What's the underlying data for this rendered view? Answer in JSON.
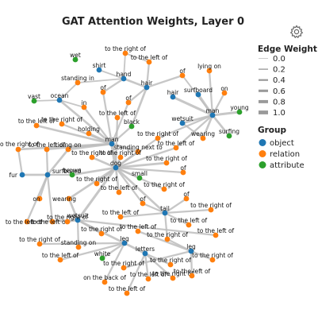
{
  "chart_data": {
    "type": "network",
    "title": "GAT Attention Weights, Layer 0",
    "legend_edge_title": "Edge Weight",
    "legend_edge_levels": [
      "0.0",
      "0.2",
      "0.4",
      "0.6",
      "0.8",
      "1.0"
    ],
    "legend_group_title": "Group",
    "legend_position": "right",
    "groups": [
      {
        "name": "object",
        "color": "#1f77b4"
      },
      {
        "name": "relation",
        "color": "#ff7f0e"
      },
      {
        "name": "attribute",
        "color": "#2ca02c"
      }
    ],
    "nodes": [
      {
        "id": "wet",
        "label": "wet",
        "group": "attribute"
      },
      {
        "id": "shirt",
        "label": "shirt",
        "group": "object"
      },
      {
        "id": "tro1",
        "label": "to the right of",
        "group": "relation"
      },
      {
        "id": "tlo1",
        "label": "to the left of",
        "group": "relation"
      },
      {
        "id": "hand",
        "label": "hand",
        "group": "object"
      },
      {
        "id": "hair1",
        "label": "hair",
        "group": "object"
      },
      {
        "id": "standing_in",
        "label": "standing in",
        "group": "relation"
      },
      {
        "id": "of1",
        "label": "of",
        "group": "relation"
      },
      {
        "id": "lying_on",
        "label": "lying on",
        "group": "relation"
      },
      {
        "id": "of2",
        "label": "of",
        "group": "relation"
      },
      {
        "id": "on1",
        "label": "on",
        "group": "relation"
      },
      {
        "id": "hair2",
        "label": "hair",
        "group": "object"
      },
      {
        "id": "surfboard1",
        "label": "surfboard",
        "group": "object"
      },
      {
        "id": "vast",
        "label": "vast",
        "group": "attribute"
      },
      {
        "id": "ocean",
        "label": "ocean",
        "group": "object"
      },
      {
        "id": "of3",
        "label": "of",
        "group": "relation"
      },
      {
        "id": "man1",
        "label": "man",
        "group": "object"
      },
      {
        "id": "young",
        "label": "young",
        "group": "attribute"
      },
      {
        "id": "in1",
        "label": "in",
        "group": "relation"
      },
      {
        "id": "tlo2",
        "label": "to the left of",
        "group": "relation"
      },
      {
        "id": "black",
        "label": "black",
        "group": "attribute"
      },
      {
        "id": "wetsuit1",
        "label": "wetsuit",
        "group": "object"
      },
      {
        "id": "tlo3",
        "label": "to the left of",
        "group": "relation"
      },
      {
        "id": "tro2",
        "label": "to the right of",
        "group": "relation"
      },
      {
        "id": "holding",
        "label": "holding",
        "group": "relation"
      },
      {
        "id": "surfing",
        "label": "surfing",
        "group": "attribute"
      },
      {
        "id": "wearing1",
        "label": "wearing",
        "group": "relation"
      },
      {
        "id": "tro3",
        "label": "to the right of",
        "group": "relation"
      },
      {
        "id": "tlo4",
        "label": "to the left of",
        "group": "relation"
      },
      {
        "id": "man2",
        "label": "man",
        "group": "object"
      },
      {
        "id": "tro4",
        "label": "to the right of",
        "group": "relation"
      },
      {
        "id": "tlo5",
        "label": "to the left of",
        "group": "relation"
      },
      {
        "id": "riding_on",
        "label": "riding on",
        "group": "relation"
      },
      {
        "id": "standing_next",
        "label": "standing next to",
        "group": "relation"
      },
      {
        "id": "tro5",
        "label": "to the right of",
        "group": "relation"
      },
      {
        "id": "tro6",
        "label": "to the right of",
        "group": "relation"
      },
      {
        "id": "tro7",
        "label": "to the right of",
        "group": "relation"
      },
      {
        "id": "dog",
        "label": "dog",
        "group": "object"
      },
      {
        "id": "of4",
        "label": "of",
        "group": "relation"
      },
      {
        "id": "fur",
        "label": "fur",
        "group": "object"
      },
      {
        "id": "surfboard2",
        "label": "surfboard",
        "group": "object"
      },
      {
        "id": "brown",
        "label": "brown",
        "group": "attribute"
      },
      {
        "id": "small",
        "label": "small",
        "group": "attribute"
      },
      {
        "id": "tro8",
        "label": "to the right of",
        "group": "relation"
      },
      {
        "id": "tlo6",
        "label": "to the left of",
        "group": "relation"
      },
      {
        "id": "tro9",
        "label": "to the right of",
        "group": "relation"
      },
      {
        "id": "on2",
        "label": "on",
        "group": "relation"
      },
      {
        "id": "wearing2",
        "label": "wearing",
        "group": "relation"
      },
      {
        "id": "of5",
        "label": "of",
        "group": "relation"
      },
      {
        "id": "of6",
        "label": "of",
        "group": "relation"
      },
      {
        "id": "tail",
        "label": "tail",
        "group": "object"
      },
      {
        "id": "tro10",
        "label": "to the right of",
        "group": "relation"
      },
      {
        "id": "tlo7",
        "label": "to the left of",
        "group": "relation"
      },
      {
        "id": "tlo8",
        "label": "to the left of",
        "group": "relation"
      },
      {
        "id": "wetsuit2",
        "label": "wetsuit",
        "group": "object"
      },
      {
        "id": "tlo9",
        "label": "to the left of",
        "group": "relation"
      },
      {
        "id": "tlo10",
        "label": "to the left of",
        "group": "relation"
      },
      {
        "id": "tlo11",
        "label": "to the left of",
        "group": "relation"
      },
      {
        "id": "tro11",
        "label": "to the right of",
        "group": "relation"
      },
      {
        "id": "tro12",
        "label": "to the right of",
        "group": "relation"
      },
      {
        "id": "tro13",
        "label": "to the right of",
        "group": "relation"
      },
      {
        "id": "standing_on",
        "label": "standing on",
        "group": "relation"
      },
      {
        "id": "leg1",
        "label": "leg",
        "group": "object"
      },
      {
        "id": "leg2",
        "label": "leg",
        "group": "object"
      },
      {
        "id": "tlo12",
        "label": "to the left of",
        "group": "relation"
      },
      {
        "id": "letters",
        "label": "letters",
        "group": "object"
      },
      {
        "id": "white",
        "label": "white",
        "group": "attribute"
      },
      {
        "id": "tro14",
        "label": "to the right of",
        "group": "relation"
      },
      {
        "id": "tro15",
        "label": "to the right of",
        "group": "relation"
      },
      {
        "id": "tlo13",
        "label": "to the left of",
        "group": "relation"
      },
      {
        "id": "tro16",
        "label": "to the right of",
        "group": "relation"
      },
      {
        "id": "tro17",
        "label": "to the right of",
        "group": "relation"
      },
      {
        "id": "tro18",
        "label": "to the right of",
        "group": "relation"
      },
      {
        "id": "tlo14",
        "label": "to the left of",
        "group": "relation"
      },
      {
        "id": "on_back",
        "label": "on the back of",
        "group": "relation"
      },
      {
        "id": "tlo15",
        "label": "to the left of",
        "group": "relation"
      },
      {
        "id": "tlo16",
        "label": "to the left of",
        "group": "relation"
      }
    ],
    "edges": [
      {
        "source": "shirt",
        "target": "hand",
        "weight": 0.3
      },
      {
        "source": "hand",
        "target": "standing_in",
        "weight": 0.3
      },
      {
        "source": "hand",
        "target": "hair1",
        "weight": 0.5
      },
      {
        "source": "hand",
        "target": "of1",
        "weight": 0.4
      },
      {
        "source": "hand",
        "target": "tro1",
        "weight": 0.3
      },
      {
        "source": "tro1",
        "target": "tlo1",
        "weight": 0.3
      },
      {
        "source": "tlo1",
        "target": "hair1",
        "weight": 0.4
      },
      {
        "source": "hair1",
        "target": "of2",
        "weight": 0.4
      },
      {
        "source": "hair1",
        "target": "black",
        "weight": 0.5
      },
      {
        "source": "hair1",
        "target": "of3",
        "weight": 0.4
      },
      {
        "source": "of1",
        "target": "man2",
        "weight": 0.4
      },
      {
        "source": "of3",
        "target": "man2",
        "weight": 0.4
      },
      {
        "source": "lying_on",
        "target": "man1",
        "weight": 0.4
      },
      {
        "source": "of2",
        "target": "man1",
        "weight": 0.3
      },
      {
        "source": "on1",
        "target": "man1",
        "weight": 0.4
      },
      {
        "source": "hair2",
        "target": "man1",
        "weight": 0.6
      },
      {
        "source": "surfboard1",
        "target": "man1",
        "weight": 0.6
      },
      {
        "source": "man1",
        "target": "young",
        "weight": 0.6
      },
      {
        "source": "man1",
        "target": "wetsuit1",
        "weight": 0.5
      },
      {
        "source": "man1",
        "target": "wearing1",
        "weight": 0.5
      },
      {
        "source": "wearing1",
        "target": "wetsuit1",
        "weight": 0.4
      },
      {
        "source": "man1",
        "target": "surfing",
        "weight": 0.5
      },
      {
        "source": "man1",
        "target": "tro3",
        "weight": 0.4
      },
      {
        "source": "man1",
        "target": "tlo4",
        "weight": 0.4
      },
      {
        "source": "tro3",
        "target": "dog",
        "weight": 0.4
      },
      {
        "source": "tlo4",
        "target": "dog",
        "weight": 0.4
      },
      {
        "source": "ocean",
        "target": "standing_in",
        "weight": 0.3
      },
      {
        "source": "ocean",
        "target": "vast",
        "weight": 0.3
      },
      {
        "source": "ocean",
        "target": "in1",
        "weight": 0.3
      },
      {
        "source": "ocean",
        "target": "man2",
        "weight": 0.5
      },
      {
        "source": "in1",
        "target": "man2",
        "weight": 0.4
      },
      {
        "source": "tlo2",
        "target": "man2",
        "weight": 0.5
      },
      {
        "source": "holding",
        "target": "man2",
        "weight": 0.5
      },
      {
        "source": "black",
        "target": "man2",
        "weight": 0.4
      },
      {
        "source": "tro2",
        "target": "man2",
        "weight": 0.4
      },
      {
        "source": "man2",
        "target": "tro4",
        "weight": 0.5
      },
      {
        "source": "man2",
        "target": "tlo5",
        "weight": 0.4
      },
      {
        "source": "man2",
        "target": "riding_on",
        "weight": 0.5
      },
      {
        "source": "man2",
        "target": "standing_next",
        "weight": 0.6
      },
      {
        "source": "man2",
        "target": "dog",
        "weight": 0.8
      },
      {
        "source": "tro4",
        "target": "fur",
        "weight": 0.4
      },
      {
        "source": "riding_on",
        "target": "surfboard2",
        "weight": 0.5
      },
      {
        "source": "tlo5",
        "target": "surfboard2",
        "weight": 0.4
      },
      {
        "source": "standing_next",
        "target": "dog",
        "weight": 0.5
      },
      {
        "source": "tro5",
        "target": "dog",
        "weight": 0.5
      },
      {
        "source": "tro6",
        "target": "dog",
        "weight": 0.5
      },
      {
        "source": "tro7",
        "target": "dog",
        "weight": 0.5
      },
      {
        "source": "tlo3",
        "target": "dog",
        "weight": 0.4
      },
      {
        "source": "of4",
        "target": "dog",
        "weight": 0.4
      },
      {
        "source": "dog",
        "target": "brown",
        "weight": 0.5
      },
      {
        "source": "dog",
        "target": "small",
        "weight": 0.5
      },
      {
        "source": "dog",
        "target": "tro8",
        "weight": 0.5
      },
      {
        "source": "dog",
        "target": "tlo6",
        "weight": 0.5
      },
      {
        "source": "dog",
        "target": "tro9",
        "weight": 0.4
      },
      {
        "source": "dog",
        "target": "wearing2",
        "weight": 0.5
      },
      {
        "source": "dog",
        "target": "of5",
        "weight": 0.4
      },
      {
        "source": "dog",
        "target": "tail",
        "weight": 0.5
      },
      {
        "source": "dog",
        "target": "wetsuit2",
        "weight": 0.6
      },
      {
        "source": "surfboard2",
        "target": "fur",
        "weight": 0.5
      },
      {
        "source": "surfboard2",
        "target": "brown",
        "weight": 0.4
      },
      {
        "source": "surfboard2",
        "target": "on2",
        "weight": 0.4
      },
      {
        "source": "surfboard2",
        "target": "tlo8",
        "weight": 0.4
      },
      {
        "source": "surfboard2",
        "target": "tlo9",
        "weight": 0.4
      },
      {
        "source": "wearing2",
        "target": "wetsuit2",
        "weight": 0.5
      },
      {
        "source": "of5",
        "target": "tail",
        "weight": 0.4
      },
      {
        "source": "of6",
        "target": "tail",
        "weight": 0.4
      },
      {
        "source": "tail",
        "target": "tro10",
        "weight": 0.4
      },
      {
        "source": "tail",
        "target": "tlo7",
        "weight": 0.4
      },
      {
        "source": "tail",
        "target": "tlo10",
        "weight": 0.4
      },
      {
        "source": "tail",
        "target": "tro12",
        "weight": 0.4
      },
      {
        "source": "wetsuit2",
        "target": "tlo8",
        "weight": 0.4
      },
      {
        "source": "wetsuit2",
        "target": "tlo9",
        "weight": 0.4
      },
      {
        "source": "wetsuit2",
        "target": "tro11",
        "weight": 0.4
      },
      {
        "source": "wetsuit2",
        "target": "tro13",
        "weight": 0.4
      },
      {
        "source": "wetsuit2",
        "target": "standing_on",
        "weight": 0.4
      },
      {
        "source": "wetsuit2",
        "target": "leg1",
        "weight": 0.5
      },
      {
        "source": "wetsuit2",
        "target": "tlo11",
        "weight": 0.4
      },
      {
        "source": "leg1",
        "target": "white",
        "weight": 0.4
      },
      {
        "source": "leg1",
        "target": "letters",
        "weight": 0.5
      },
      {
        "source": "leg1",
        "target": "tlo13",
        "weight": 0.4
      },
      {
        "source": "leg1",
        "target": "tro15",
        "weight": 0.4
      },
      {
        "source": "leg1",
        "target": "on_back",
        "weight": 0.4
      },
      {
        "source": "letters",
        "target": "tro16",
        "weight": 0.4
      },
      {
        "source": "letters",
        "target": "tro17",
        "weight": 0.4
      },
      {
        "source": "letters",
        "target": "tlo15",
        "weight": 0.4
      },
      {
        "source": "letters",
        "target": "tlo16",
        "weight": 0.4
      },
      {
        "source": "tro12",
        "target": "leg2",
        "weight": 0.4
      },
      {
        "source": "tlo12",
        "target": "leg2",
        "weight": 0.4
      },
      {
        "source": "leg2",
        "target": "tro14",
        "weight": 0.4
      },
      {
        "source": "leg2",
        "target": "tro18",
        "weight": 0.4
      },
      {
        "source": "leg2",
        "target": "tlo14",
        "weight": 0.4
      }
    ]
  }
}
